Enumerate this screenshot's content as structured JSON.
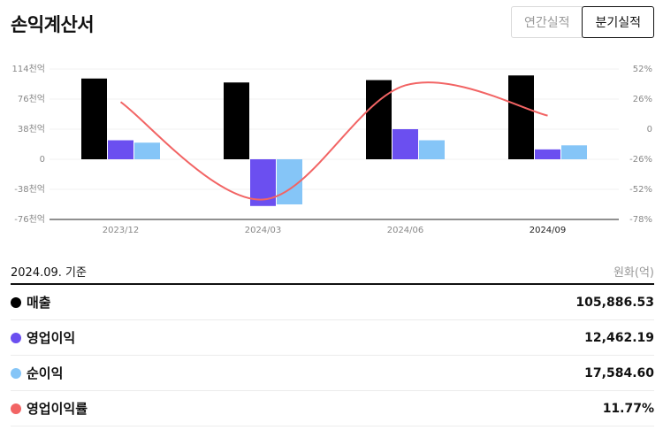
{
  "header": {
    "title": "손익계산서",
    "tabs": [
      {
        "label": "연간실적",
        "active": false
      },
      {
        "label": "분기실적",
        "active": true
      }
    ]
  },
  "chart_data": {
    "type": "bar",
    "categories": [
      "2023/12",
      "2024/03",
      "2024/06",
      "2024/09"
    ],
    "active_category": "2024/09",
    "series": [
      {
        "name": "매출",
        "type": "bar",
        "axis": "left",
        "color": "#000000",
        "values": [
          102000,
          97000,
          100000,
          105886.53
        ]
      },
      {
        "name": "영업이익",
        "type": "bar",
        "axis": "left",
        "color": "#6b4ff0",
        "values": [
          24000,
          -59000,
          38000,
          12462.19
        ]
      },
      {
        "name": "순이익",
        "type": "bar",
        "axis": "left",
        "color": "#85c5f7",
        "values": [
          21000,
          -57000,
          24000,
          17584.6
        ]
      },
      {
        "name": "영업이익률",
        "type": "line",
        "axis": "right",
        "color": "#f26464",
        "values": [
          23.5,
          -60.8,
          37.9,
          11.77
        ]
      }
    ],
    "y_left": {
      "ticks": [
        114000,
        76000,
        38000,
        0,
        -38000,
        -76000
      ],
      "tick_labels": [
        "114천억",
        "76천억",
        "38천억",
        "0",
        "-38천억",
        "-76천억"
      ],
      "ylim": [
        -76000,
        114000
      ]
    },
    "y_right": {
      "ticks": [
        52,
        26,
        0,
        -26,
        -52,
        -78
      ],
      "tick_labels": [
        "52%",
        "26%",
        "0",
        "-26%",
        "-52%",
        "-78%"
      ],
      "ylim": [
        -78,
        52
      ]
    },
    "grid": true,
    "legend": "table-below"
  },
  "summary": {
    "basis": "2024.09. 기준",
    "unit": "원화(억)",
    "rows": [
      {
        "label": "매출",
        "value": "105,886.53",
        "color": "#000000"
      },
      {
        "label": "영업이익",
        "value": "12,462.19",
        "color": "#6b4ff0"
      },
      {
        "label": "순이익",
        "value": "17,584.60",
        "color": "#85c5f7"
      },
      {
        "label": "영업이익률",
        "value": "11.77%",
        "color": "#f26464"
      }
    ]
  }
}
